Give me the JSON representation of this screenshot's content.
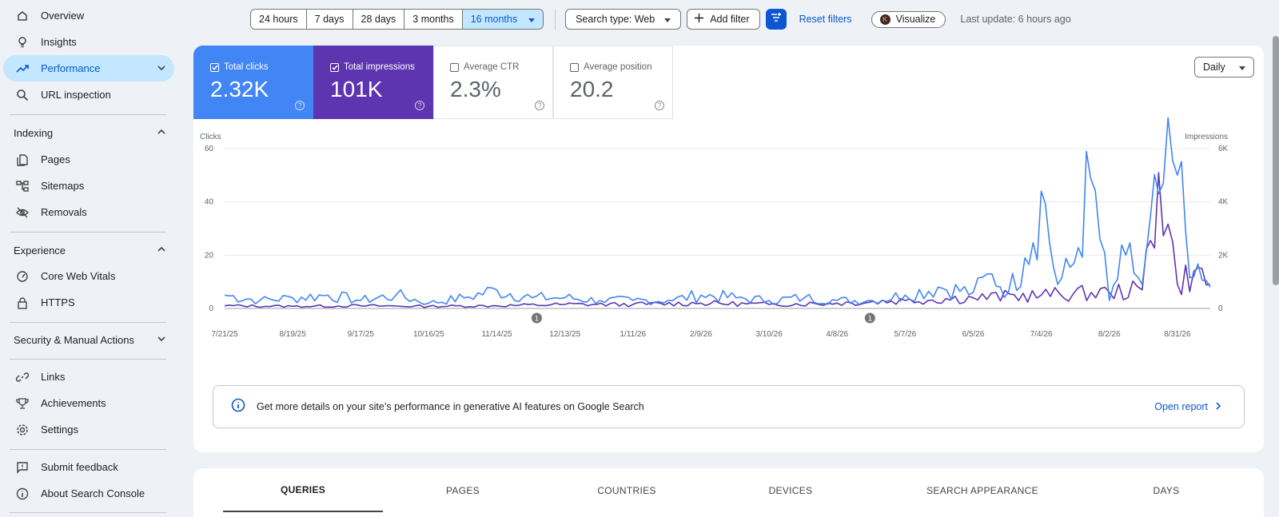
{
  "sidebar": {
    "items_top": [
      {
        "label": "Overview",
        "icon": "home-icon"
      },
      {
        "label": "Insights",
        "icon": "lightbulb-icon"
      },
      {
        "label": "Performance",
        "icon": "trending-up-icon"
      },
      {
        "label": "URL inspection",
        "icon": "search-icon"
      }
    ],
    "indexing": {
      "header": "Indexing",
      "items": [
        {
          "label": "Pages",
          "icon": "pages-icon"
        },
        {
          "label": "Sitemaps",
          "icon": "sitemap-icon"
        },
        {
          "label": "Removals",
          "icon": "eye-off-icon"
        }
      ]
    },
    "experience": {
      "header": "Experience",
      "items": [
        {
          "label": "Core Web Vitals",
          "icon": "gauge-icon"
        },
        {
          "label": "HTTPS",
          "icon": "lock-icon"
        }
      ]
    },
    "security_header": "Security & Manual Actions",
    "items_bottom": [
      {
        "label": "Links",
        "icon": "link-icon"
      },
      {
        "label": "Achievements",
        "icon": "trophy-icon"
      },
      {
        "label": "Settings",
        "icon": "gear-icon"
      }
    ],
    "footer": [
      {
        "label": "Submit feedback",
        "icon": "feedback-icon"
      },
      {
        "label": "About Search Console",
        "icon": "info-icon"
      }
    ]
  },
  "toolbar": {
    "ranges": [
      "24 hours",
      "7 days",
      "28 days",
      "3 months",
      "16 months"
    ],
    "selected_range": "16 months",
    "search_type": "Search type: Web",
    "add_filter": "Add filter",
    "reset_filters": "Reset filters",
    "visualize": "Visualize",
    "last_update": "Last update: 6 hours ago"
  },
  "metrics": [
    {
      "label": "Total clicks",
      "value": "2.32K",
      "checked": true,
      "color": "#4285f4"
    },
    {
      "label": "Total impressions",
      "value": "101K",
      "checked": true,
      "color": "#5e35b1"
    },
    {
      "label": "Average CTR",
      "value": "2.3%",
      "checked": false,
      "color": "#ffffff"
    },
    {
      "label": "Average position",
      "value": "20.2",
      "checked": false,
      "color": "#ffffff"
    }
  ],
  "granularity": "Daily",
  "chart_data": {
    "type": "line",
    "ylabel_left": "Clicks",
    "ylabel_right": "Impressions",
    "left_ticks": [
      "60",
      "40",
      "20",
      "0"
    ],
    "right_ticks": [
      "6K",
      "4K",
      "2K",
      "0"
    ],
    "ylim_left": [
      0,
      60
    ],
    "ylim_right": [
      0,
      6000
    ],
    "x_ticks": [
      "7/21/25",
      "8/19/25",
      "9/17/25",
      "10/16/25",
      "11/14/25",
      "12/13/25",
      "1/11/26",
      "2/9/26",
      "3/10/26",
      "4/8/26",
      "5/7/26",
      "6/5/26",
      "7/4/26",
      "8/2/26",
      "8/31/26"
    ],
    "annotations": [
      {
        "label": "1",
        "x": "12/1/25"
      },
      {
        "label": "1",
        "x": "4/22/26"
      }
    ],
    "series": [
      {
        "name": "Clicks",
        "color": "#4285f4",
        "axis": "left",
        "x": [
          "7/21/25",
          "8/5/25",
          "8/19/25",
          "9/3/25",
          "9/17/25",
          "10/2/25",
          "10/16/25",
          "10/31/25",
          "11/14/25",
          "11/29/25",
          "12/13/25",
          "12/28/25",
          "1/11/26",
          "1/26/26",
          "2/9/26",
          "2/24/26",
          "3/10/26",
          "3/25/26",
          "4/8/26",
          "4/23/26",
          "5/7/26",
          "5/21/26",
          "6/5/26",
          "6/13/26",
          "6/20/26",
          "6/27/26",
          "7/4/26",
          "7/11/26",
          "7/18/26",
          "7/25/26",
          "8/2/26",
          "8/9/26",
          "8/16/26",
          "8/23/26",
          "8/31/26",
          "9/7/26",
          "9/14/26"
        ],
        "values": [
          5,
          3,
          4,
          5,
          3,
          5,
          2,
          4,
          7,
          4,
          4,
          3,
          3,
          3,
          5,
          4,
          3,
          4,
          3,
          3,
          5,
          8,
          6,
          13,
          6,
          19,
          44,
          9,
          17,
          49,
          3,
          20,
          9,
          43,
          50,
          12,
          8
        ]
      },
      {
        "name": "Impressions",
        "color": "#5e35b1",
        "axis": "right",
        "x": [
          "7/21/25",
          "8/19/25",
          "9/17/25",
          "10/16/25",
          "11/14/25",
          "12/13/25",
          "1/11/26",
          "2/9/26",
          "3/10/26",
          "4/8/26",
          "5/7/26",
          "6/5/26",
          "7/4/26",
          "8/2/26",
          "8/16/26",
          "8/23/26",
          "8/31/26",
          "9/7/26",
          "9/14/26"
        ],
        "values": [
          100,
          80,
          100,
          80,
          100,
          150,
          150,
          200,
          150,
          200,
          300,
          400,
          500,
          600,
          700,
          5100,
          900,
          1400,
          900
        ]
      }
    ]
  },
  "banner": {
    "text": "Get more details on your site’s performance in generative AI features on Google Search",
    "link": "Open report"
  },
  "tabs": [
    "QUERIES",
    "PAGES",
    "COUNTRIES",
    "DEVICES",
    "SEARCH APPEARANCE",
    "DAYS"
  ]
}
